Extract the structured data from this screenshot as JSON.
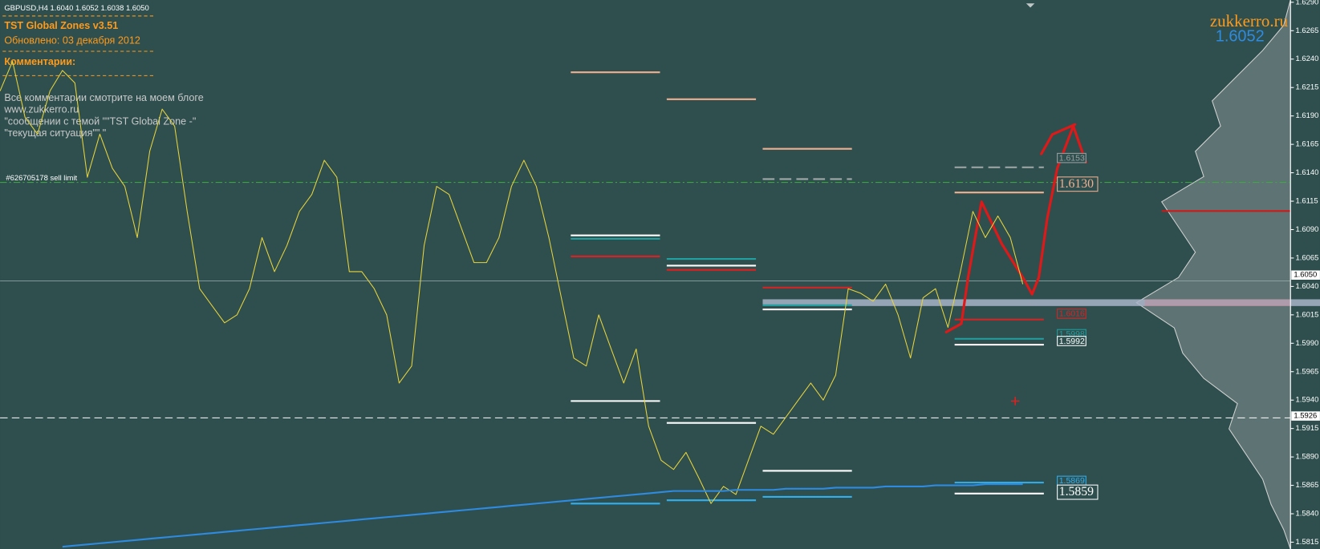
{
  "header": {
    "symbol_line": "GBPUSD,H4  1.6040 1.6052 1.6038 1.6050",
    "title": "TST Global Zones  v3.51",
    "updated": "Обновлено:   03 декабря 2012",
    "comments_title": "Комментарии:",
    "comments": [
      "Все комментарии смотрите на моем блоге",
      "www.zukkerro.ru",
      "\"сообщении с темой \"\"TST Global Zone -\"",
      "\"текущая ситуация\"\" \""
    ]
  },
  "order_label": "#626705178 sell limit",
  "watermark": {
    "site": "zukkerro.ru",
    "price": "1.6052"
  },
  "chart_data": {
    "type": "line",
    "series": [
      {
        "color": "#e8d43a",
        "values": [
          1.6212,
          1.6238,
          1.6189,
          1.6174,
          1.6212,
          1.623,
          1.6219,
          1.6136,
          1.6174,
          1.6144,
          1.6128,
          1.6083,
          1.6159,
          1.6196,
          1.6181,
          1.6106,
          1.6038,
          1.6023,
          1.6008,
          1.6015,
          1.6038,
          1.6083,
          1.6053,
          1.6076,
          1.6106,
          1.6121,
          1.6151,
          1.6136,
          1.6053,
          1.6053,
          1.6038,
          1.6015,
          1.5955,
          1.597,
          1.6076,
          1.6128,
          1.6121,
          1.6091,
          1.6061,
          1.6061,
          1.6083,
          1.6128,
          1.6151,
          1.6128,
          1.6083,
          1.603,
          1.5977,
          1.597,
          1.6015,
          1.5985,
          1.5955,
          1.5985,
          1.5917,
          1.5887,
          1.5879,
          1.5894,
          1.5872,
          1.5849,
          1.5864,
          1.5857,
          1.5887,
          1.5917,
          1.591,
          1.5925,
          1.594,
          1.5955,
          1.594,
          1.5962,
          1.6038,
          1.6034,
          1.6027,
          1.6042,
          1.6015,
          1.5977,
          1.603,
          1.6038,
          1.6004,
          1.6053,
          1.6106,
          1.6083,
          1.6102,
          1.6083,
          1.6042
        ]
      },
      {
        "color": "#2e8be0",
        "values": [
          null,
          null,
          null,
          null,
          null,
          1.5811,
          1.5812,
          1.5813,
          1.5814,
          1.5815,
          1.5816,
          1.5817,
          1.5818,
          1.5819,
          1.582,
          1.5821,
          1.5822,
          1.5823,
          1.5824,
          1.5825,
          1.5826,
          1.5827,
          1.5828,
          1.5829,
          1.583,
          1.5831,
          1.5832,
          1.5833,
          1.5834,
          1.5835,
          1.5836,
          1.5837,
          1.5838,
          1.5839,
          1.584,
          1.5841,
          1.5842,
          1.5843,
          1.5844,
          1.5845,
          1.5846,
          1.5847,
          1.5848,
          1.5849,
          1.585,
          1.5851,
          1.5852,
          1.5853,
          1.5854,
          1.5855,
          1.5856,
          1.5857,
          1.5858,
          1.5859,
          1.586,
          1.586,
          1.586,
          1.586,
          1.586,
          1.5861,
          1.5861,
          1.5861,
          1.5861,
          1.5862,
          1.5862,
          1.5862,
          1.5862,
          1.5863,
          1.5863,
          1.5863,
          1.5863,
          1.5864,
          1.5864,
          1.5864,
          1.5864,
          1.5865,
          1.5865,
          1.5865,
          1.5865,
          1.5866,
          1.5866,
          1.5866,
          1.5866
        ]
      }
    ],
    "ylim": [
      1.5809,
      1.6292
    ],
    "yticks": [
      {
        "value": 1.629,
        "label": "1.6290"
      },
      1.6265,
      {
        "value": 1.624,
        "label": "1.6240"
      },
      1.6215,
      {
        "value": 1.619,
        "label": "1.6190"
      },
      1.6165,
      {
        "value": 1.614,
        "label": "1.6140"
      },
      1.6115,
      {
        "value": 1.609,
        "label": "1.6090"
      },
      1.6065,
      {
        "value": 1.604,
        "label": "1.6040"
      },
      1.6015,
      {
        "value": 1.599,
        "label": "1.5990"
      },
      1.5965,
      {
        "value": 1.594,
        "label": "1.5940"
      },
      1.5915,
      {
        "value": 1.589,
        "label": "1.5890"
      },
      1.5865,
      {
        "value": 1.584,
        "label": "1.5840"
      },
      1.5815
    ],
    "current_price": {
      "value": 1.605,
      "label": "1.6050"
    },
    "marker_price": 1.5926,
    "level_labels": [
      1.6153,
      {
        "value": 1.613,
        "label": "1.6130"
      },
      1.6016,
      1.5998,
      1.5992,
      1.5869,
      1.5859
    ],
    "level_colors": [
      "#9aa0a0",
      "#f0b090",
      "#e02020",
      "#20a0a0",
      "#ffffff",
      "#30b0f0",
      "#ffffff"
    ]
  }
}
